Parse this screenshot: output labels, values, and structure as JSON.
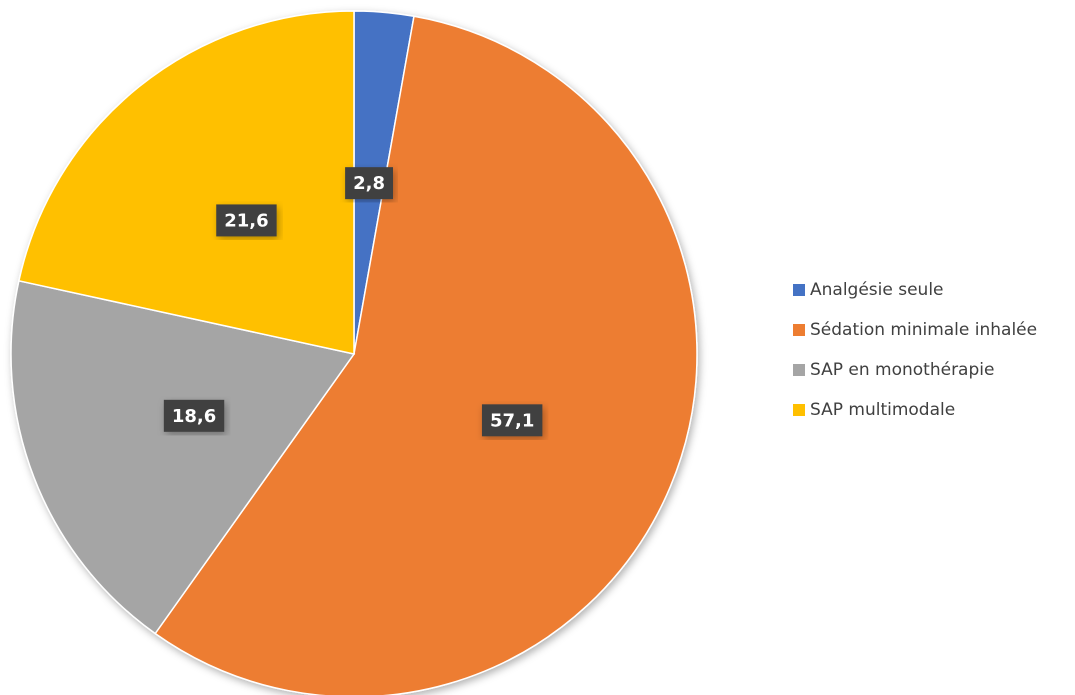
{
  "chart_data": {
    "type": "pie",
    "categories": [
      "Analgésie seule",
      "Sédation minimale inhalée",
      "SAP en monothérapie",
      "SAP multimodale"
    ],
    "values": [
      2.8,
      57.1,
      18.6,
      21.6
    ],
    "value_labels": [
      "2,8",
      "57,1",
      "18,6",
      "21,6"
    ],
    "colors": [
      "#4472c4",
      "#ed7d31",
      "#a5a5a5",
      "#ffc000"
    ],
    "legend": "right"
  }
}
